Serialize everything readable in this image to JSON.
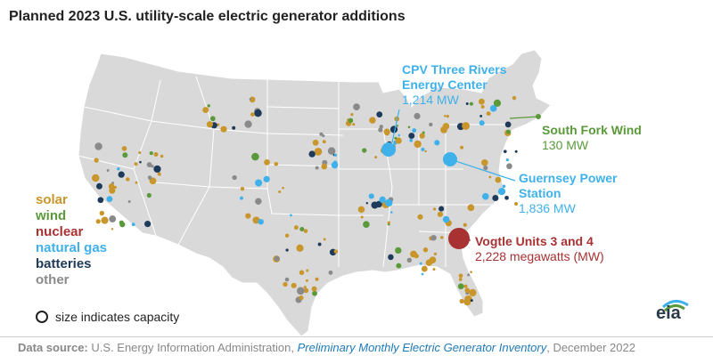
{
  "title": "Planned 2023 U.S. utility-scale electric generator additions",
  "legend": {
    "items": [
      {
        "label": "solar",
        "color": "#c8962a"
      },
      {
        "label": "wind",
        "color": "#5a9a3a"
      },
      {
        "label": "nuclear",
        "color": "#a83232"
      },
      {
        "label": "natural gas",
        "color": "#3fb1ea"
      },
      {
        "label": "batteries",
        "color": "#1e3a5a"
      },
      {
        "label": "other",
        "color": "#8a8a8a"
      }
    ],
    "size_note": "size indicates capacity"
  },
  "callouts": {
    "cpv": {
      "name_line1": "CPV Three Rivers",
      "name_line2": "Energy Center",
      "capacity": "1,214 MW",
      "color": "#3fb1ea"
    },
    "south_fork": {
      "name": "South Fork Wind",
      "capacity": "130 MW",
      "color": "#5a9a3a"
    },
    "guernsey": {
      "name_line1": "Guernsey Power",
      "name_line2": "Station",
      "capacity": "1,836 MW",
      "color": "#3fb1ea"
    },
    "vogtle": {
      "name": "Vogtle Units 3 and 4",
      "capacity": "2,228 megawatts (MW)",
      "color": "#a83232"
    }
  },
  "source": {
    "label": "Data source:",
    "text_before": "U.S. Energy Information Administration,",
    "report": "Preliminary Monthly Electric Generator Inventory",
    "text_after": ", December 2022"
  },
  "logo": {
    "text": "eia"
  },
  "map_colors": {
    "land": "#d9d9d9",
    "border": "#ffffff"
  }
}
